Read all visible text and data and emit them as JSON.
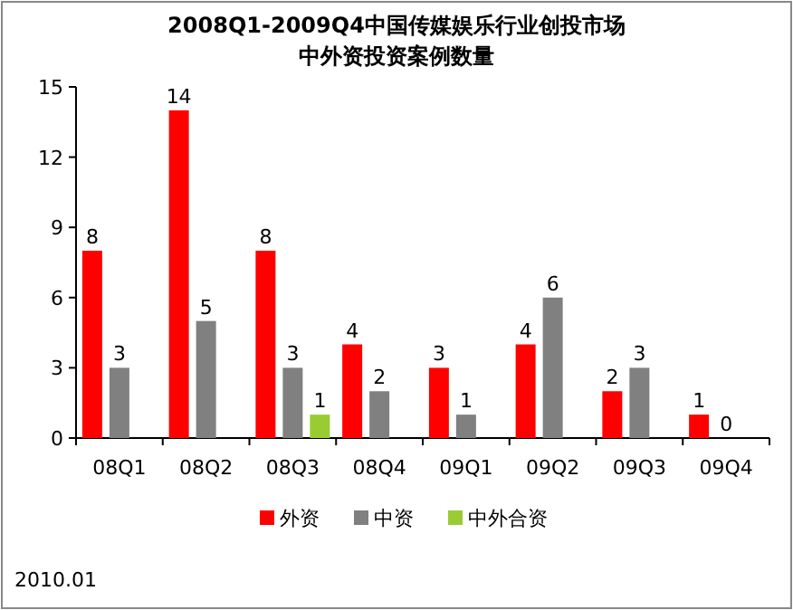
{
  "chart_data": {
    "type": "bar",
    "title": "2008Q1-2009Q4中国传媒娱乐行业创投市场",
    "subtitle": "中外资投资案例数量",
    "categories": [
      "08Q1",
      "08Q2",
      "08Q3",
      "08Q4",
      "09Q1",
      "09Q2",
      "09Q3",
      "09Q4"
    ],
    "series": [
      {
        "name": "外资",
        "color": "#ff0000",
        "values": [
          8,
          14,
          8,
          4,
          3,
          4,
          2,
          1
        ]
      },
      {
        "name": "中资",
        "color": "#808080",
        "values": [
          3,
          5,
          3,
          2,
          1,
          6,
          3,
          0
        ]
      },
      {
        "name": "中外合资",
        "color": "#99cc33",
        "values": [
          null,
          null,
          1,
          null,
          null,
          null,
          null,
          null
        ]
      }
    ],
    "ylim": [
      0,
      15
    ],
    "yticks": [
      0,
      3,
      6,
      9,
      12,
      15
    ],
    "data_labels": true,
    "legend": "bottom",
    "annotations": [
      "2010.01"
    ]
  }
}
